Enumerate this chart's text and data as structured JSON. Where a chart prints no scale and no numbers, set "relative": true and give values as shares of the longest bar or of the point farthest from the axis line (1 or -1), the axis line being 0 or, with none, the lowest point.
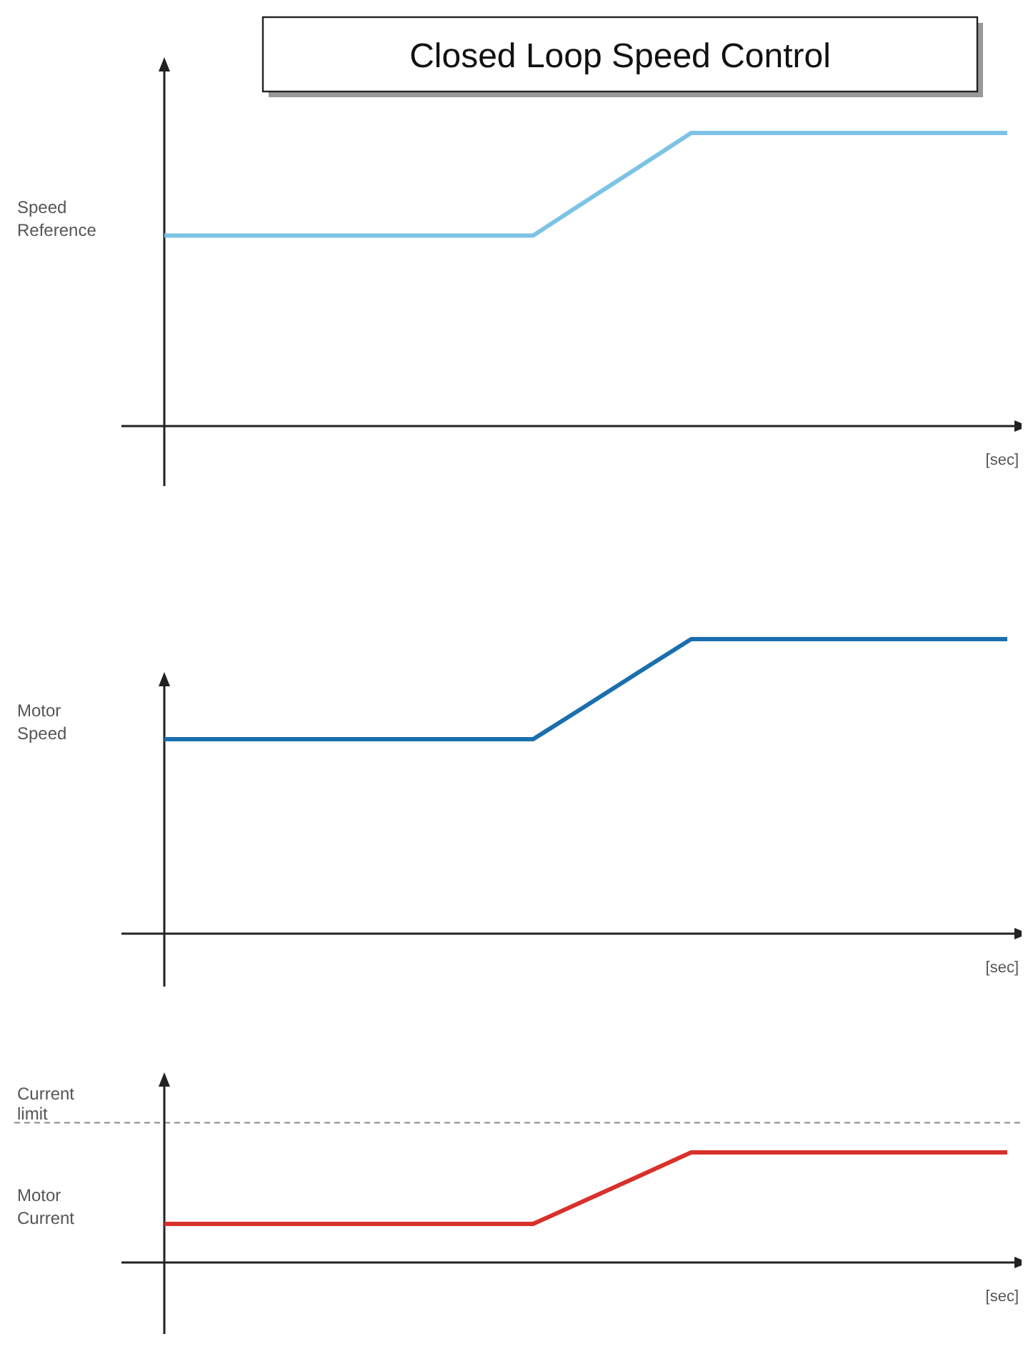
{
  "chart_data": [
    {
      "type": "line",
      "title": "Closed Loop Speed Control",
      "ylabel": "Speed Reference",
      "xlabel": "[sec]",
      "relative": true,
      "categories": [
        null,
        null,
        null,
        null,
        null,
        null,
        null,
        null,
        null,
        null,
        null,
        null,
        null,
        null,
        null,
        null,
        null
      ],
      "series": [
        {
          "color": "#7cc3e6",
          "values": [
            0.65,
            0.65,
            0.65,
            0.65,
            0.65,
            0.65,
            0.65,
            0.65,
            0.767,
            0.883,
            1,
            1,
            1,
            1,
            1,
            1,
            1
          ]
        }
      ]
    },
    {
      "type": "line",
      "ylabel": "Motor Speed",
      "xlabel": "[sec]",
      "relative": true,
      "categories": [
        null,
        null,
        null,
        null,
        null,
        null,
        null,
        null,
        null,
        null,
        null,
        null,
        null,
        null,
        null,
        null,
        null
      ],
      "series": [
        {
          "color": "#1a6fae",
          "values": [
            0.66,
            0.66,
            0.66,
            0.66,
            0.66,
            0.66,
            0.66,
            0.66,
            0.773,
            0.887,
            1,
            1,
            1,
            1,
            1,
            1,
            1
          ]
        }
      ]
    },
    {
      "type": "line",
      "ylabel": "Motor Current",
      "xlabel": "[sec]",
      "relative": true,
      "categories": [
        null,
        null,
        null,
        null,
        null,
        null,
        null,
        null,
        null,
        null,
        null,
        null,
        null,
        null,
        null,
        null,
        null
      ],
      "series": [
        {
          "color": "#d8312b",
          "values": [
            0.35,
            0.35,
            0.35,
            0.35,
            0.35,
            0.35,
            0.35,
            0.35,
            0.567,
            0.783,
            1,
            1,
            1,
            1,
            1,
            1,
            1
          ]
        }
      ],
      "ref_lines": [
        {
          "axis": "y",
          "value": 1.27,
          "label": "Current limit",
          "color": "#888888",
          "line_style": "dashed"
        }
      ]
    }
  ]
}
